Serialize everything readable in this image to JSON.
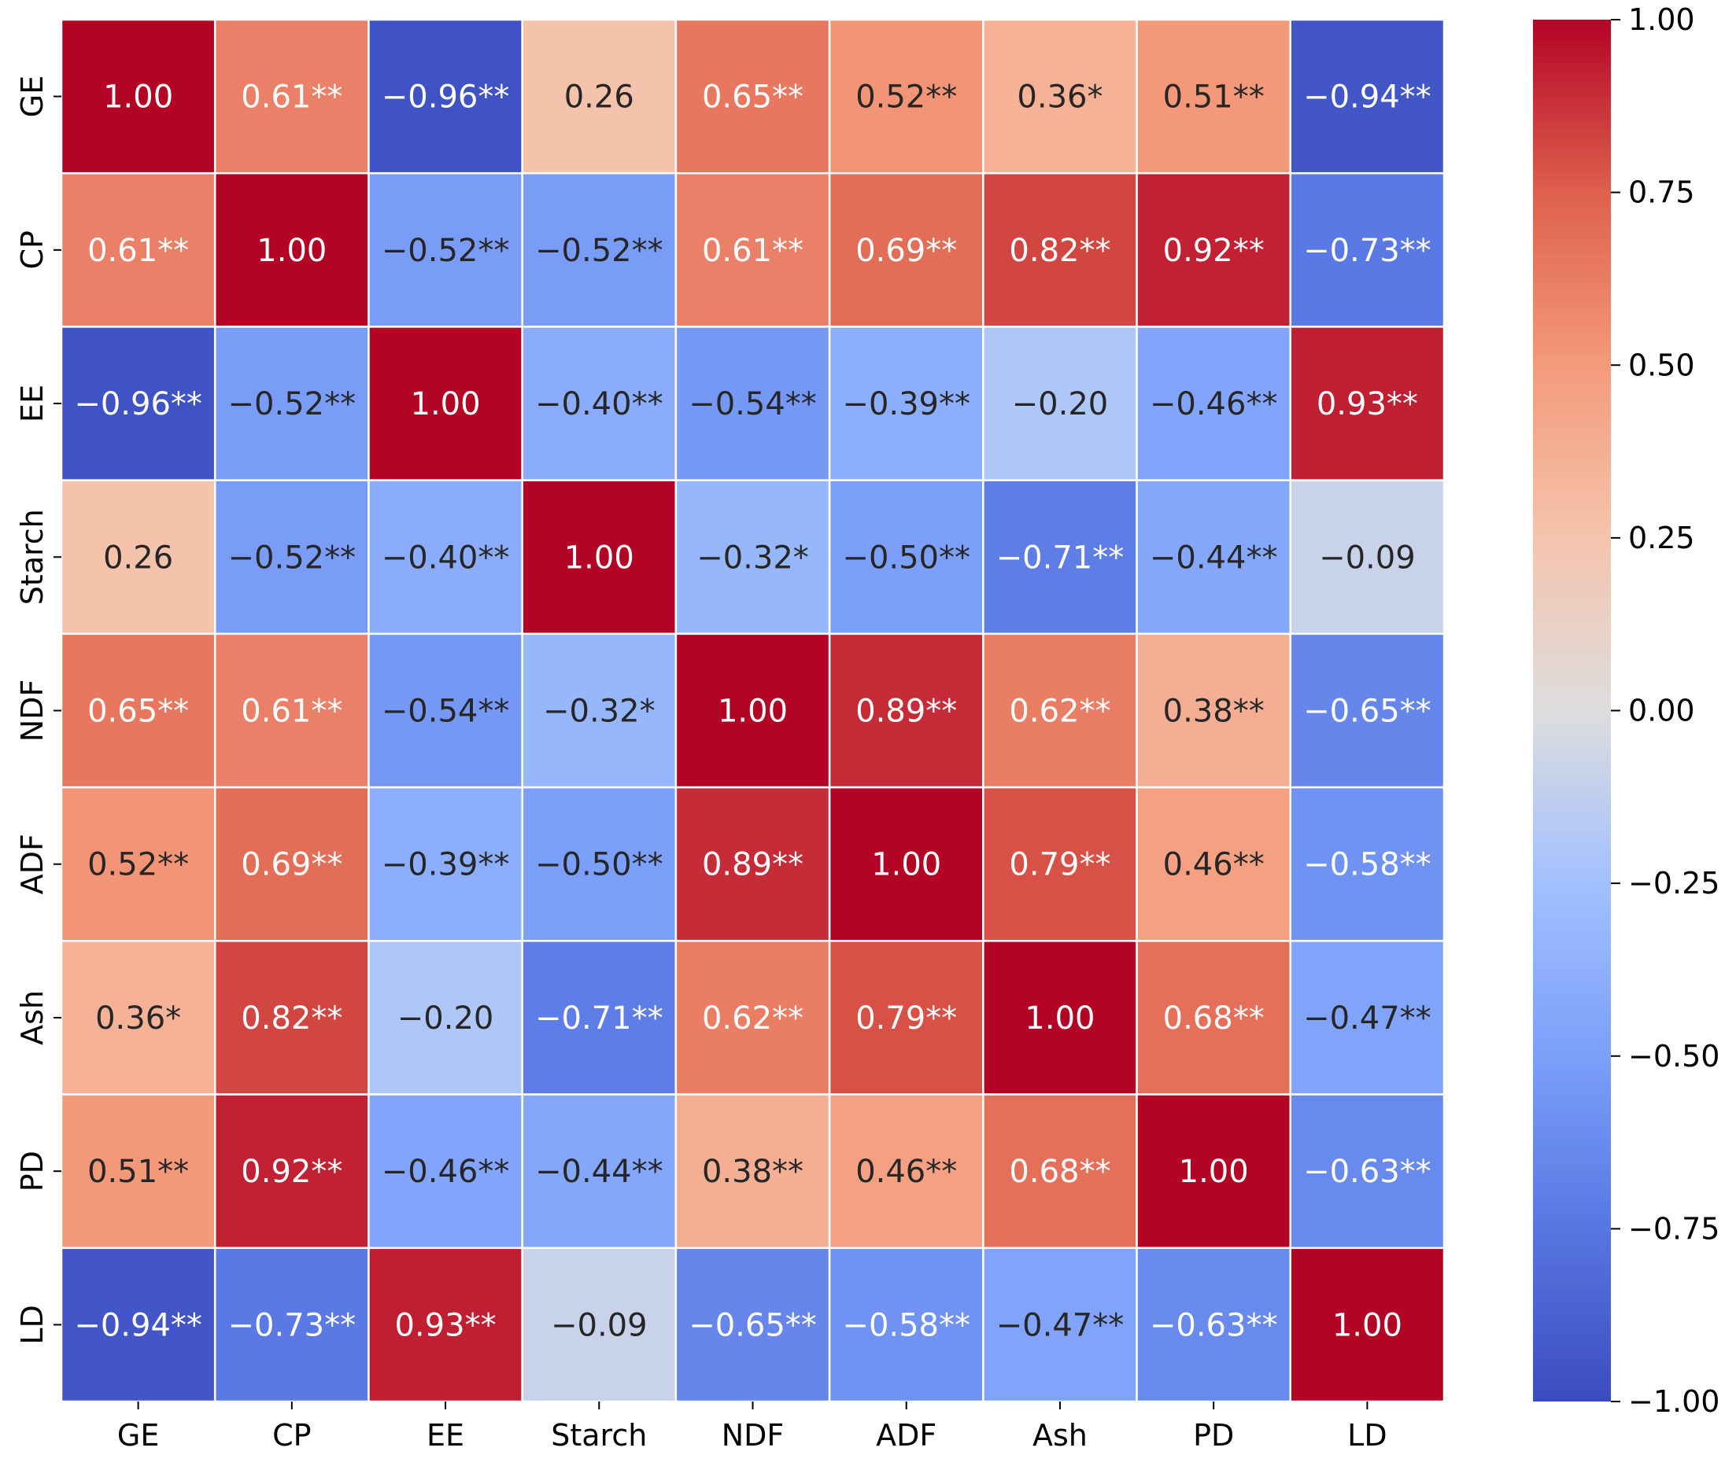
{
  "chart_data": {
    "type": "heatmap",
    "title": "",
    "xlabel": "",
    "ylabel": "",
    "variables": [
      "GE",
      "CP",
      "EE",
      "Starch",
      "NDF",
      "ADF",
      "Ash",
      "PD",
      "LD"
    ],
    "values": [
      [
        1.0,
        0.61,
        -0.96,
        0.26,
        0.65,
        0.52,
        0.36,
        0.51,
        -0.94
      ],
      [
        0.61,
        1.0,
        -0.52,
        -0.52,
        0.61,
        0.69,
        0.82,
        0.92,
        -0.73
      ],
      [
        -0.96,
        -0.52,
        1.0,
        -0.4,
        -0.54,
        -0.39,
        -0.2,
        -0.46,
        0.93
      ],
      [
        0.26,
        -0.52,
        -0.4,
        1.0,
        -0.32,
        -0.5,
        -0.71,
        -0.44,
        -0.09
      ],
      [
        0.65,
        0.61,
        -0.54,
        -0.32,
        1.0,
        0.89,
        0.62,
        0.38,
        -0.65
      ],
      [
        0.52,
        0.69,
        -0.39,
        -0.5,
        0.89,
        1.0,
        0.79,
        0.46,
        -0.58
      ],
      [
        0.36,
        0.82,
        -0.2,
        -0.71,
        0.62,
        0.79,
        1.0,
        0.68,
        -0.47
      ],
      [
        0.51,
        0.92,
        -0.46,
        -0.44,
        0.38,
        0.46,
        0.68,
        1.0,
        -0.63
      ],
      [
        -0.94,
        -0.73,
        0.93,
        -0.09,
        -0.65,
        -0.58,
        -0.47,
        -0.63,
        1.0
      ]
    ],
    "labels": [
      [
        "1.00",
        "0.61**",
        "−0.96**",
        "0.26",
        "0.65**",
        "0.52**",
        "0.36*",
        "0.51**",
        "−0.94**"
      ],
      [
        "0.61**",
        "1.00",
        "−0.52**",
        "−0.52**",
        "0.61**",
        "0.69**",
        "0.82**",
        "0.92**",
        "−0.73**"
      ],
      [
        "−0.96**",
        "−0.52**",
        "1.00",
        "−0.40**",
        "−0.54**",
        "−0.39**",
        "−0.20",
        "−0.46**",
        "0.93**"
      ],
      [
        "0.26",
        "−0.52**",
        "−0.40**",
        "1.00",
        "−0.32*",
        "−0.50**",
        "−0.71**",
        "−0.44**",
        "−0.09"
      ],
      [
        "0.65**",
        "0.61**",
        "−0.54**",
        "−0.32*",
        "1.00",
        "0.89**",
        "0.62**",
        "0.38**",
        "−0.65**"
      ],
      [
        "0.52**",
        "0.69**",
        "−0.39**",
        "−0.50**",
        "0.89**",
        "1.00",
        "0.79**",
        "0.46**",
        "−0.58**"
      ],
      [
        "0.36*",
        "0.82**",
        "−0.20",
        "−0.71**",
        "0.62**",
        "0.79**",
        "1.00",
        "0.68**",
        "−0.47**"
      ],
      [
        "0.51**",
        "0.92**",
        "−0.46**",
        "−0.44**",
        "0.38**",
        "0.46**",
        "0.68**",
        "1.00",
        "−0.63**"
      ],
      [
        "−0.94**",
        "−0.73**",
        "0.93**",
        "−0.09",
        "−0.65**",
        "−0.58**",
        "−0.47**",
        "−0.63**",
        "1.00"
      ]
    ],
    "colormap": "coolwarm",
    "vmin": -1.0,
    "vmax": 1.0,
    "colorbar": {
      "ticks": [
        1.0,
        0.75,
        0.5,
        0.25,
        0.0,
        -0.25,
        -0.5,
        -0.75,
        -1.0
      ],
      "tick_labels": [
        "1.00",
        "0.75",
        "0.50",
        "0.25",
        "0.00",
        "−0.25",
        "−0.50",
        "−0.75",
        "−1.00"
      ]
    },
    "grid": true,
    "legend": "colorbar-right"
  },
  "colors": {
    "cell_border": "#ffffff",
    "text_dark": "#262626",
    "text_light": "#ffffff",
    "tick": "#000000"
  }
}
